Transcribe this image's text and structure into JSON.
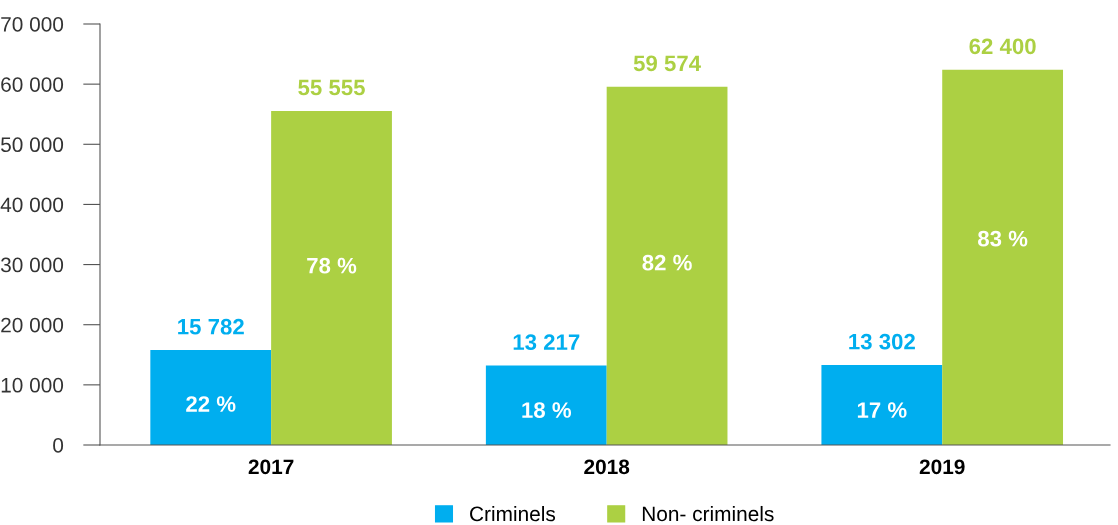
{
  "chart_data": {
    "type": "bar",
    "categories": [
      "2017",
      "2018",
      "2019"
    ],
    "series": [
      {
        "name": "Criminels",
        "color": "#00aeef",
        "values": [
          15782,
          13217,
          13302
        ],
        "value_labels": [
          "15 782",
          "13 217",
          "13 302"
        ]
      },
      {
        "name": "Non- criminels",
        "color": "#acd043",
        "values": [
          55555,
          59574,
          62400
        ],
        "value_labels": [
          "55 555",
          "59 574",
          "62 400"
        ]
      }
    ],
    "ylim": [
      0,
      70000
    ],
    "yticks": [
      {
        "value": 0,
        "label": "0"
      },
      {
        "value": 10000,
        "label": "10 000"
      },
      {
        "value": 20000,
        "label": "20 000"
      },
      {
        "value": 30000,
        "label": "30 000"
      },
      {
        "value": 40000,
        "label": "40 000"
      },
      {
        "value": 50000,
        "label": "50 000"
      },
      {
        "value": 60000,
        "label": "60 000"
      },
      {
        "value": 70000,
        "label": "70 000"
      }
    ],
    "annotations": [
      {
        "text": "22 %",
        "x": "2017",
        "y": 6500
      },
      {
        "text": "78 %",
        "x": "2017",
        "y": 29500
      },
      {
        "text": "18 %",
        "x": "2018",
        "y": 5500
      },
      {
        "text": "82 %",
        "x": "2018",
        "y": 30000
      },
      {
        "text": "17 %",
        "x": "2019",
        "y": 5500
      },
      {
        "text": "83 %",
        "x": "2019",
        "y": 34000
      }
    ],
    "grid": false,
    "legend": "bottom"
  }
}
